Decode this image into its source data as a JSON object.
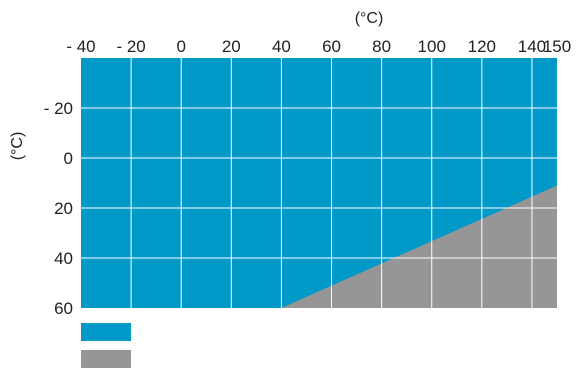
{
  "chart_data": {
    "type": "area",
    "title": "",
    "xlabel": "(°C)",
    "ylabel": "(°C)",
    "x_axis_position": "top",
    "y_axis_inverted": true,
    "xlim": [
      -40,
      150
    ],
    "ylim": [
      -40,
      60
    ],
    "x_ticks": [
      -40,
      -20,
      0,
      20,
      40,
      60,
      80,
      100,
      120,
      140,
      150
    ],
    "x_tick_labels": [
      "- 40",
      "- 20",
      "0",
      "20",
      "40",
      "60",
      "80",
      "100",
      "120",
      "140",
      "150"
    ],
    "y_ticks": [
      -20,
      0,
      20,
      40,
      60
    ],
    "y_tick_labels": [
      "- 20",
      "0",
      "20",
      "40",
      "60"
    ],
    "x_gridlines": [
      -20,
      0,
      20,
      40,
      60,
      80,
      100,
      120,
      140
    ],
    "y_gridlines": [
      -20,
      0,
      20,
      40
    ],
    "grid": true,
    "series": [
      {
        "color": "#0099c8"
      },
      {
        "color": "#969696",
        "boundary": [
          {
            "x": 40,
            "y": 60
          },
          {
            "x": 150,
            "y": 11
          }
        ]
      }
    ],
    "legend": {
      "placement": "bottom-left",
      "entries": [
        "",
        ""
      ]
    }
  }
}
